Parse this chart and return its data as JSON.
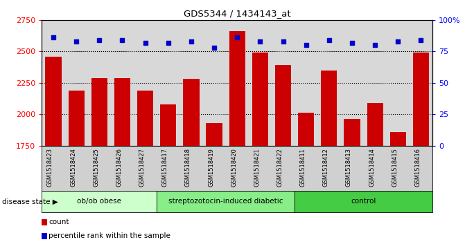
{
  "title": "GDS5344 / 1434143_at",
  "samples": [
    "GSM1518423",
    "GSM1518424",
    "GSM1518425",
    "GSM1518426",
    "GSM1518427",
    "GSM1518417",
    "GSM1518418",
    "GSM1518419",
    "GSM1518420",
    "GSM1518421",
    "GSM1518422",
    "GSM1518411",
    "GSM1518412",
    "GSM1518413",
    "GSM1518414",
    "GSM1518415",
    "GSM1518416"
  ],
  "counts": [
    2460,
    2190,
    2290,
    2290,
    2190,
    2080,
    2280,
    1930,
    2660,
    2490,
    2390,
    2010,
    2350,
    1960,
    2090,
    1860,
    2490
  ],
  "percentiles": [
    86,
    83,
    84,
    84,
    82,
    82,
    83,
    78,
    86,
    83,
    83,
    80,
    84,
    82,
    80,
    83,
    84
  ],
  "bar_color": "#cc0000",
  "dot_color": "#0000cc",
  "ylim_left": [
    1750,
    2750
  ],
  "ylim_right": [
    0,
    100
  ],
  "yticks_left": [
    1750,
    2000,
    2250,
    2500,
    2750
  ],
  "yticks_right": [
    0,
    25,
    50,
    75,
    100
  ],
  "groups": [
    {
      "label": "ob/ob obese",
      "start": 0,
      "end": 5,
      "color": "#ccffcc"
    },
    {
      "label": "streptozotocin-induced diabetic",
      "start": 5,
      "end": 11,
      "color": "#88ee88"
    },
    {
      "label": "control",
      "start": 11,
      "end": 17,
      "color": "#44cc44"
    }
  ],
  "disease_state_label": "disease state",
  "legend_count_label": "count",
  "legend_percentile_label": "percentile rank within the sample",
  "bar_bg_color": "#d8d8d8",
  "plot_bg_color": "#ffffff",
  "sample_box_color": "#d0d0d0"
}
